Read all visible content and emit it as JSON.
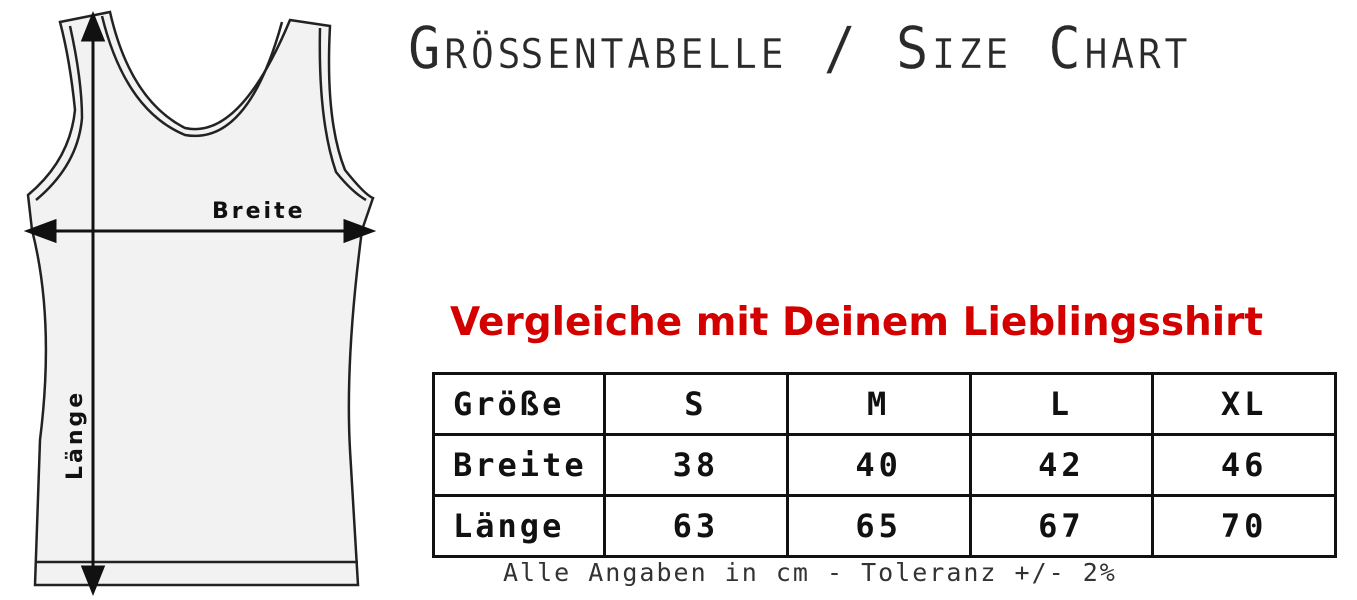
{
  "title": "Größentabelle / Size Chart",
  "subtitle": "Vergleiche mit Deinem Lieblingsshirt",
  "diagram": {
    "width_label": "Breite",
    "length_label": "Länge"
  },
  "table": {
    "header": [
      "Größe",
      "S",
      "M",
      "L",
      "XL"
    ],
    "rows": [
      [
        "Breite",
        "38",
        "40",
        "42",
        "46"
      ],
      [
        "Länge",
        "63",
        "65",
        "67",
        "70"
      ]
    ]
  },
  "note": "Alle Angaben in cm - Toleranz +/- 2%",
  "colors": {
    "subtitle": "#d40000",
    "text": "#111111"
  }
}
